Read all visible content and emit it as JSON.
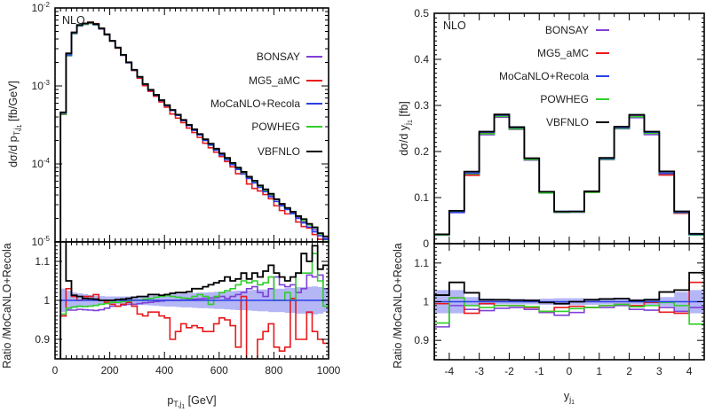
{
  "colors": {
    "BONSAY": "#8040d8",
    "MG5_aMC": "#e8191c",
    "MoCaNLO+Recola": "#2a3fe6",
    "POWHEG": "#2fcf2a",
    "VBFNLO": "#000000",
    "band": "#b4b6f6"
  },
  "chart_data": [
    {
      "type": "line",
      "style": "step-histogram",
      "annotation": "NLO",
      "xlabel": {
        "main": "p",
        "sub": "T,j",
        "subsub": "1",
        "rest": " [GeV]"
      },
      "ylabel": {
        "main": "dσ/d p",
        "sub": "T,j",
        "subsub": "1",
        "rest": " [fb/GeV]"
      },
      "ratio_ylabel": "Ratio /MoCaNLO+Recola",
      "xlim": [
        0,
        1000
      ],
      "ylim": [
        1e-05,
        0.01
      ],
      "yscale": "log",
      "ratio_ylim": [
        0.85,
        1.15
      ],
      "xticks": [
        "0",
        "200",
        "400",
        "600",
        "800",
        "1000"
      ],
      "xtick_values": [
        0,
        200,
        400,
        600,
        800,
        1000
      ],
      "yticks": [
        {
          "base": "10",
          "exp": "-2",
          "v": 0.01
        },
        {
          "base": "10",
          "exp": "-3",
          "v": 0.001
        },
        {
          "base": "10",
          "exp": "-4",
          "v": 0.0001
        },
        {
          "base": "10",
          "exp": "-5",
          "v": 1e-05
        }
      ],
      "ratio_yticks": [
        "0.9",
        "1",
        "1.1"
      ],
      "ratio_ytick_values": [
        0.9,
        1.0,
        1.1
      ],
      "legend": [
        "BONSAY",
        "MG5_aMC",
        "MoCaNLO+Recola",
        "POWHEG",
        "VBFNLO"
      ],
      "legend_placement": "right",
      "bin_edges_start": 20,
      "bin_width": 20,
      "reference": "MoCaNLO+Recola",
      "reference_values": [
        0.00045,
        0.0025,
        0.0048,
        0.006,
        0.0063,
        0.0065,
        0.0062,
        0.0055,
        0.0046,
        0.0038,
        0.0031,
        0.0025,
        0.002,
        0.0016,
        0.0013,
        0.00105,
        0.00088,
        0.00076,
        0.00065,
        0.00056,
        0.000485,
        0.00042,
        0.00036,
        0.00031,
        0.00027,
        0.000235,
        0.0002,
        0.000175,
        0.00015,
        0.00013,
        0.000113,
        9.8e-05,
        8.5e-05,
        7.4e-05,
        6.5e-05,
        5.7e-05,
        5e-05,
        4.4e-05,
        3.8e-05,
        3.3e-05,
        2.9e-05,
        2.6e-05,
        2.3e-05,
        2e-05,
        1.75e-05,
        1.55e-05,
        1.35e-05,
        1.2e-05,
        1.08e-05
      ],
      "band_halfwidth": [
        0.03,
        0.025,
        0.02,
        0.018,
        0.016,
        0.014,
        0.012,
        0.011,
        0.01,
        0.01,
        0.01,
        0.01,
        0.01,
        0.01,
        0.012,
        0.012,
        0.013,
        0.014,
        0.015,
        0.016,
        0.016,
        0.017,
        0.018,
        0.018,
        0.019,
        0.02,
        0.02,
        0.021,
        0.022,
        0.022,
        0.023,
        0.024,
        0.025,
        0.025,
        0.026,
        0.027,
        0.028,
        0.028,
        0.03,
        0.03,
        0.03,
        0.032,
        0.032,
        0.034,
        0.034,
        0.035,
        0.036,
        0.034,
        0.03
      ],
      "ratios": {
        "BONSAY": [
          0.96,
          0.975,
          0.975,
          0.977,
          0.976,
          0.975,
          0.974,
          0.976,
          0.98,
          0.985,
          0.985,
          0.988,
          0.99,
          0.99,
          0.992,
          0.994,
          0.995,
          0.997,
          0.998,
          1.0,
          1.0,
          1.0,
          1.001,
          1.002,
          1.003,
          1.004,
          1.005,
          1.006,
          1.007,
          1.01,
          1.005,
          1.01,
          1.015,
          1.02,
          1.03,
          1.035,
          1.02,
          1.01,
          1.03,
          1.06,
          1.04,
          1.035,
          1.04,
          1.02,
          1.03,
          1.065,
          1.06,
          1.065,
          1.03
        ],
        "MG5_aMC": [
          0.96,
          1.03,
          1.01,
          1.0,
          1.01,
          1.01,
          1.015,
          1.0,
          0.995,
          0.99,
          0.985,
          0.99,
          0.995,
          0.985,
          0.965,
          0.96,
          0.97,
          0.97,
          0.96,
          0.955,
          0.9,
          0.92,
          0.94,
          0.93,
          0.935,
          0.93,
          0.92,
          0.92,
          0.94,
          0.955,
          0.95,
          0.935,
          0.88,
          1.01,
          0.85,
          0.85,
          0.9,
          0.92,
          0.94,
          0.88,
          0.87,
          0.88,
          1.005,
          0.9,
          0.9,
          0.97,
          0.92,
          0.9,
          0.89
        ],
        "MoCaNLO+Recola": [
          1,
          1,
          1,
          1,
          1,
          1,
          1,
          1,
          1,
          1,
          1,
          1,
          1,
          1,
          1,
          1,
          1,
          1,
          1,
          1,
          1,
          1,
          1,
          1,
          1,
          1,
          1,
          1,
          1,
          1,
          1,
          1,
          1,
          1,
          1,
          1,
          1,
          1,
          1,
          1,
          1,
          1,
          1,
          1,
          1,
          1,
          1,
          1,
          1
        ],
        "POWHEG": [
          0.965,
          0.98,
          0.983,
          0.985,
          0.984,
          0.985,
          0.987,
          0.99,
          0.992,
          0.995,
          0.995,
          0.997,
          0.998,
          1.0,
          1.0,
          1.003,
          1.005,
          1.008,
          1.01,
          1.012,
          1.01,
          1.008,
          1.006,
          1.005,
          1.01,
          1.015,
          1.01,
          0.99,
          1.01,
          1.02,
          1.025,
          1.03,
          1.04,
          1.05,
          1.045,
          1.05,
          1.04,
          1.045,
          1.06,
          1.0,
          1.0,
          1.02,
          1.0,
          1.07,
          1.07,
          1.07,
          1.12,
          1.05,
          0.985
        ],
        "VBFNLO": [
          1.2,
          1.05,
          1.013,
          1.01,
          1.005,
          1.004,
          1.003,
          1.0,
          1.0,
          1.0,
          1.002,
          1.003,
          1.005,
          1.008,
          1.01,
          1.01,
          1.015,
          1.015,
          1.013,
          1.015,
          1.018,
          1.02,
          1.02,
          1.022,
          1.03,
          1.03,
          1.035,
          1.04,
          1.045,
          1.05,
          1.06,
          1.05,
          1.055,
          1.07,
          1.055,
          1.07,
          1.06,
          1.075,
          1.09,
          1.07,
          1.06,
          1.05,
          1.06,
          1.07,
          1.12,
          1.1,
          1.14,
          1.08,
          1.09
        ]
      }
    },
    {
      "type": "line",
      "style": "step-histogram",
      "annotation": "NLO",
      "xlabel": {
        "main": "y",
        "sub": "j",
        "subsub": "1",
        "rest": ""
      },
      "ylabel": {
        "main": "dσ/d y",
        "sub": "j",
        "subsub": "1",
        "rest": " [fb]"
      },
      "ratio_ylabel": "Ratio /MoCaNLO+Recola",
      "xlim": [
        -4.5,
        4.5
      ],
      "ylim": [
        0,
        0.5
      ],
      "yscale": "linear",
      "ratio_ylim": [
        0.85,
        1.15
      ],
      "xticks": [
        "-4",
        "-3",
        "-2",
        "-1",
        "0",
        "1",
        "2",
        "3",
        "4"
      ],
      "xtick_values": [
        -4,
        -3,
        -2,
        -1,
        0,
        1,
        2,
        3,
        4
      ],
      "yticks": [
        "0",
        "0.1",
        "0.2",
        "0.3",
        "0.4",
        "0.5"
      ],
      "ytick_values": [
        0,
        0.1,
        0.2,
        0.3,
        0.4,
        0.5
      ],
      "ratio_yticks": [
        "0.9",
        "1",
        "1.1"
      ],
      "ratio_ytick_values": [
        0.9,
        1.0,
        1.1
      ],
      "legend": [
        "BONSAY",
        "MG5_aMC",
        "MoCaNLO+Recola",
        "POWHEG",
        "VBFNLO"
      ],
      "legend_placement": "top-center",
      "bin_edges_start": -4.5,
      "bin_width": 0.5,
      "reference": "MoCaNLO+Recola",
      "reference_values": [
        0.02,
        0.068,
        0.153,
        0.242,
        0.279,
        0.252,
        0.185,
        0.113,
        0.07,
        0.07,
        0.113,
        0.185,
        0.252,
        0.279,
        0.242,
        0.153,
        0.068,
        0.02
      ],
      "band_halfwidth": [
        0.03,
        0.03,
        0.012,
        0.008,
        0.007,
        0.007,
        0.007,
        0.008,
        0.009,
        0.009,
        0.008,
        0.007,
        0.007,
        0.007,
        0.008,
        0.012,
        0.025,
        0.03
      ],
      "ratios": {
        "BONSAY": [
          0.935,
          0.99,
          0.98,
          0.977,
          0.983,
          0.985,
          0.98,
          0.972,
          0.965,
          0.972,
          0.985,
          0.985,
          0.99,
          0.98,
          0.978,
          0.985,
          0.975,
          0.985
        ],
        "MG5_aMC": [
          0.995,
          1.01,
          0.97,
          0.995,
          0.99,
          0.99,
          0.985,
          0.975,
          0.985,
          0.988,
          0.985,
          0.99,
          0.993,
          0.99,
          0.998,
          0.973,
          0.97,
          1.05
        ],
        "MoCaNLO+Recola": [
          1,
          1,
          1,
          1,
          1,
          1,
          1,
          1,
          1,
          1,
          1,
          1,
          1,
          1,
          1,
          1,
          1,
          1
        ],
        "POWHEG": [
          0.945,
          1.01,
          0.99,
          0.985,
          0.99,
          0.99,
          0.987,
          0.975,
          0.975,
          0.982,
          0.985,
          0.99,
          0.993,
          0.987,
          0.99,
          0.998,
          0.99,
          0.942
        ],
        "VBFNLO": [
          1.017,
          1.05,
          1.023,
          1.005,
          1.005,
          1.004,
          1.003,
          0.998,
          0.995,
          1.0,
          1.005,
          1.007,
          1.008,
          1.003,
          1.005,
          1.025,
          1.03,
          1.075
        ]
      }
    }
  ]
}
